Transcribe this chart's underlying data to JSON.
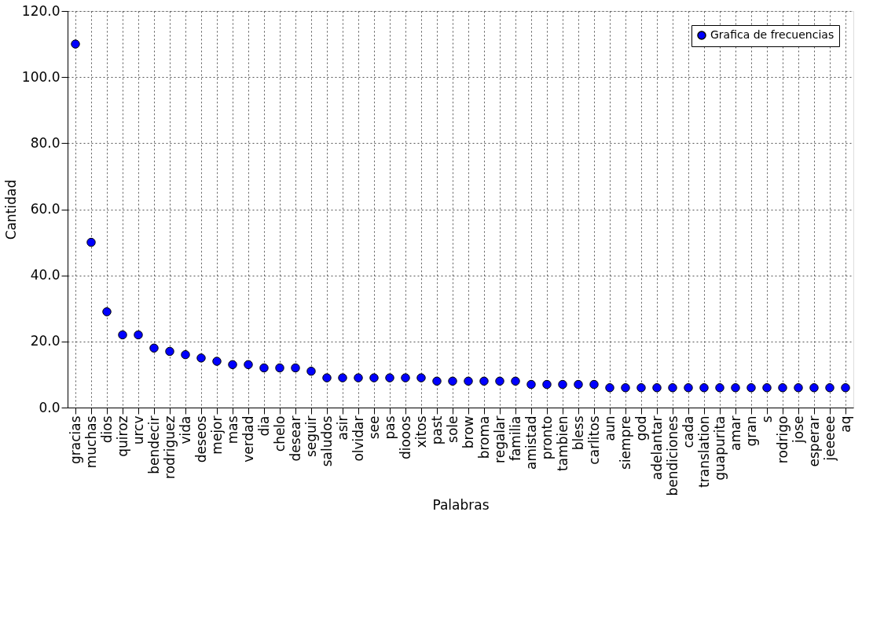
{
  "chart_data": {
    "type": "scatter",
    "xlabel": "Palabras",
    "ylabel": "Cantidad",
    "categories": [
      "gracias",
      "muchas",
      "dios",
      "quiroz",
      "urcv",
      "bendecir",
      "rodriguez",
      "vida",
      "deseos",
      "mejor",
      "mas",
      "verdad",
      "dia",
      "chelo",
      "desear",
      "seguir",
      "saludos",
      "asir",
      "olvidar",
      "see",
      "pas",
      "diooos",
      "xitos",
      "past",
      "sole",
      "brow",
      "broma",
      "regalar",
      "familia",
      "amistad",
      "pronto",
      "tambien",
      "bless",
      "carlitos",
      "aun",
      "siempre",
      "god",
      "adelantar",
      "bendiciones",
      "cada",
      "translation",
      "guapurita",
      "amar",
      "gran",
      "s",
      "rodrigo",
      "jose",
      "esperar",
      "jeeeee",
      "aq"
    ],
    "series": [
      {
        "name": "Grafica de frecuencias",
        "color": "#0000ff",
        "values": [
          110,
          50,
          29,
          22,
          22,
          18,
          17,
          16,
          15,
          14,
          13,
          13,
          12,
          12,
          12,
          11,
          9,
          9,
          9,
          9,
          9,
          9,
          9,
          8,
          8,
          8,
          8,
          8,
          8,
          7,
          7,
          7,
          7,
          7,
          6,
          6,
          6,
          6,
          6,
          6,
          6,
          6,
          6,
          6,
          6,
          6,
          6,
          6,
          6,
          6
        ]
      }
    ],
    "ylim": [
      0,
      120
    ],
    "yticks": [
      {
        "value": 0,
        "label": "0.0"
      },
      {
        "value": 20,
        "label": "20.0"
      },
      {
        "value": 40,
        "label": "40.0"
      },
      {
        "value": 60,
        "label": "60.0"
      },
      {
        "value": 80,
        "label": "80.0"
      },
      {
        "value": 100,
        "label": "100.0"
      },
      {
        "value": 120,
        "label": "120.0"
      }
    ],
    "grid": true,
    "legend": "top right",
    "marker": "circle"
  }
}
